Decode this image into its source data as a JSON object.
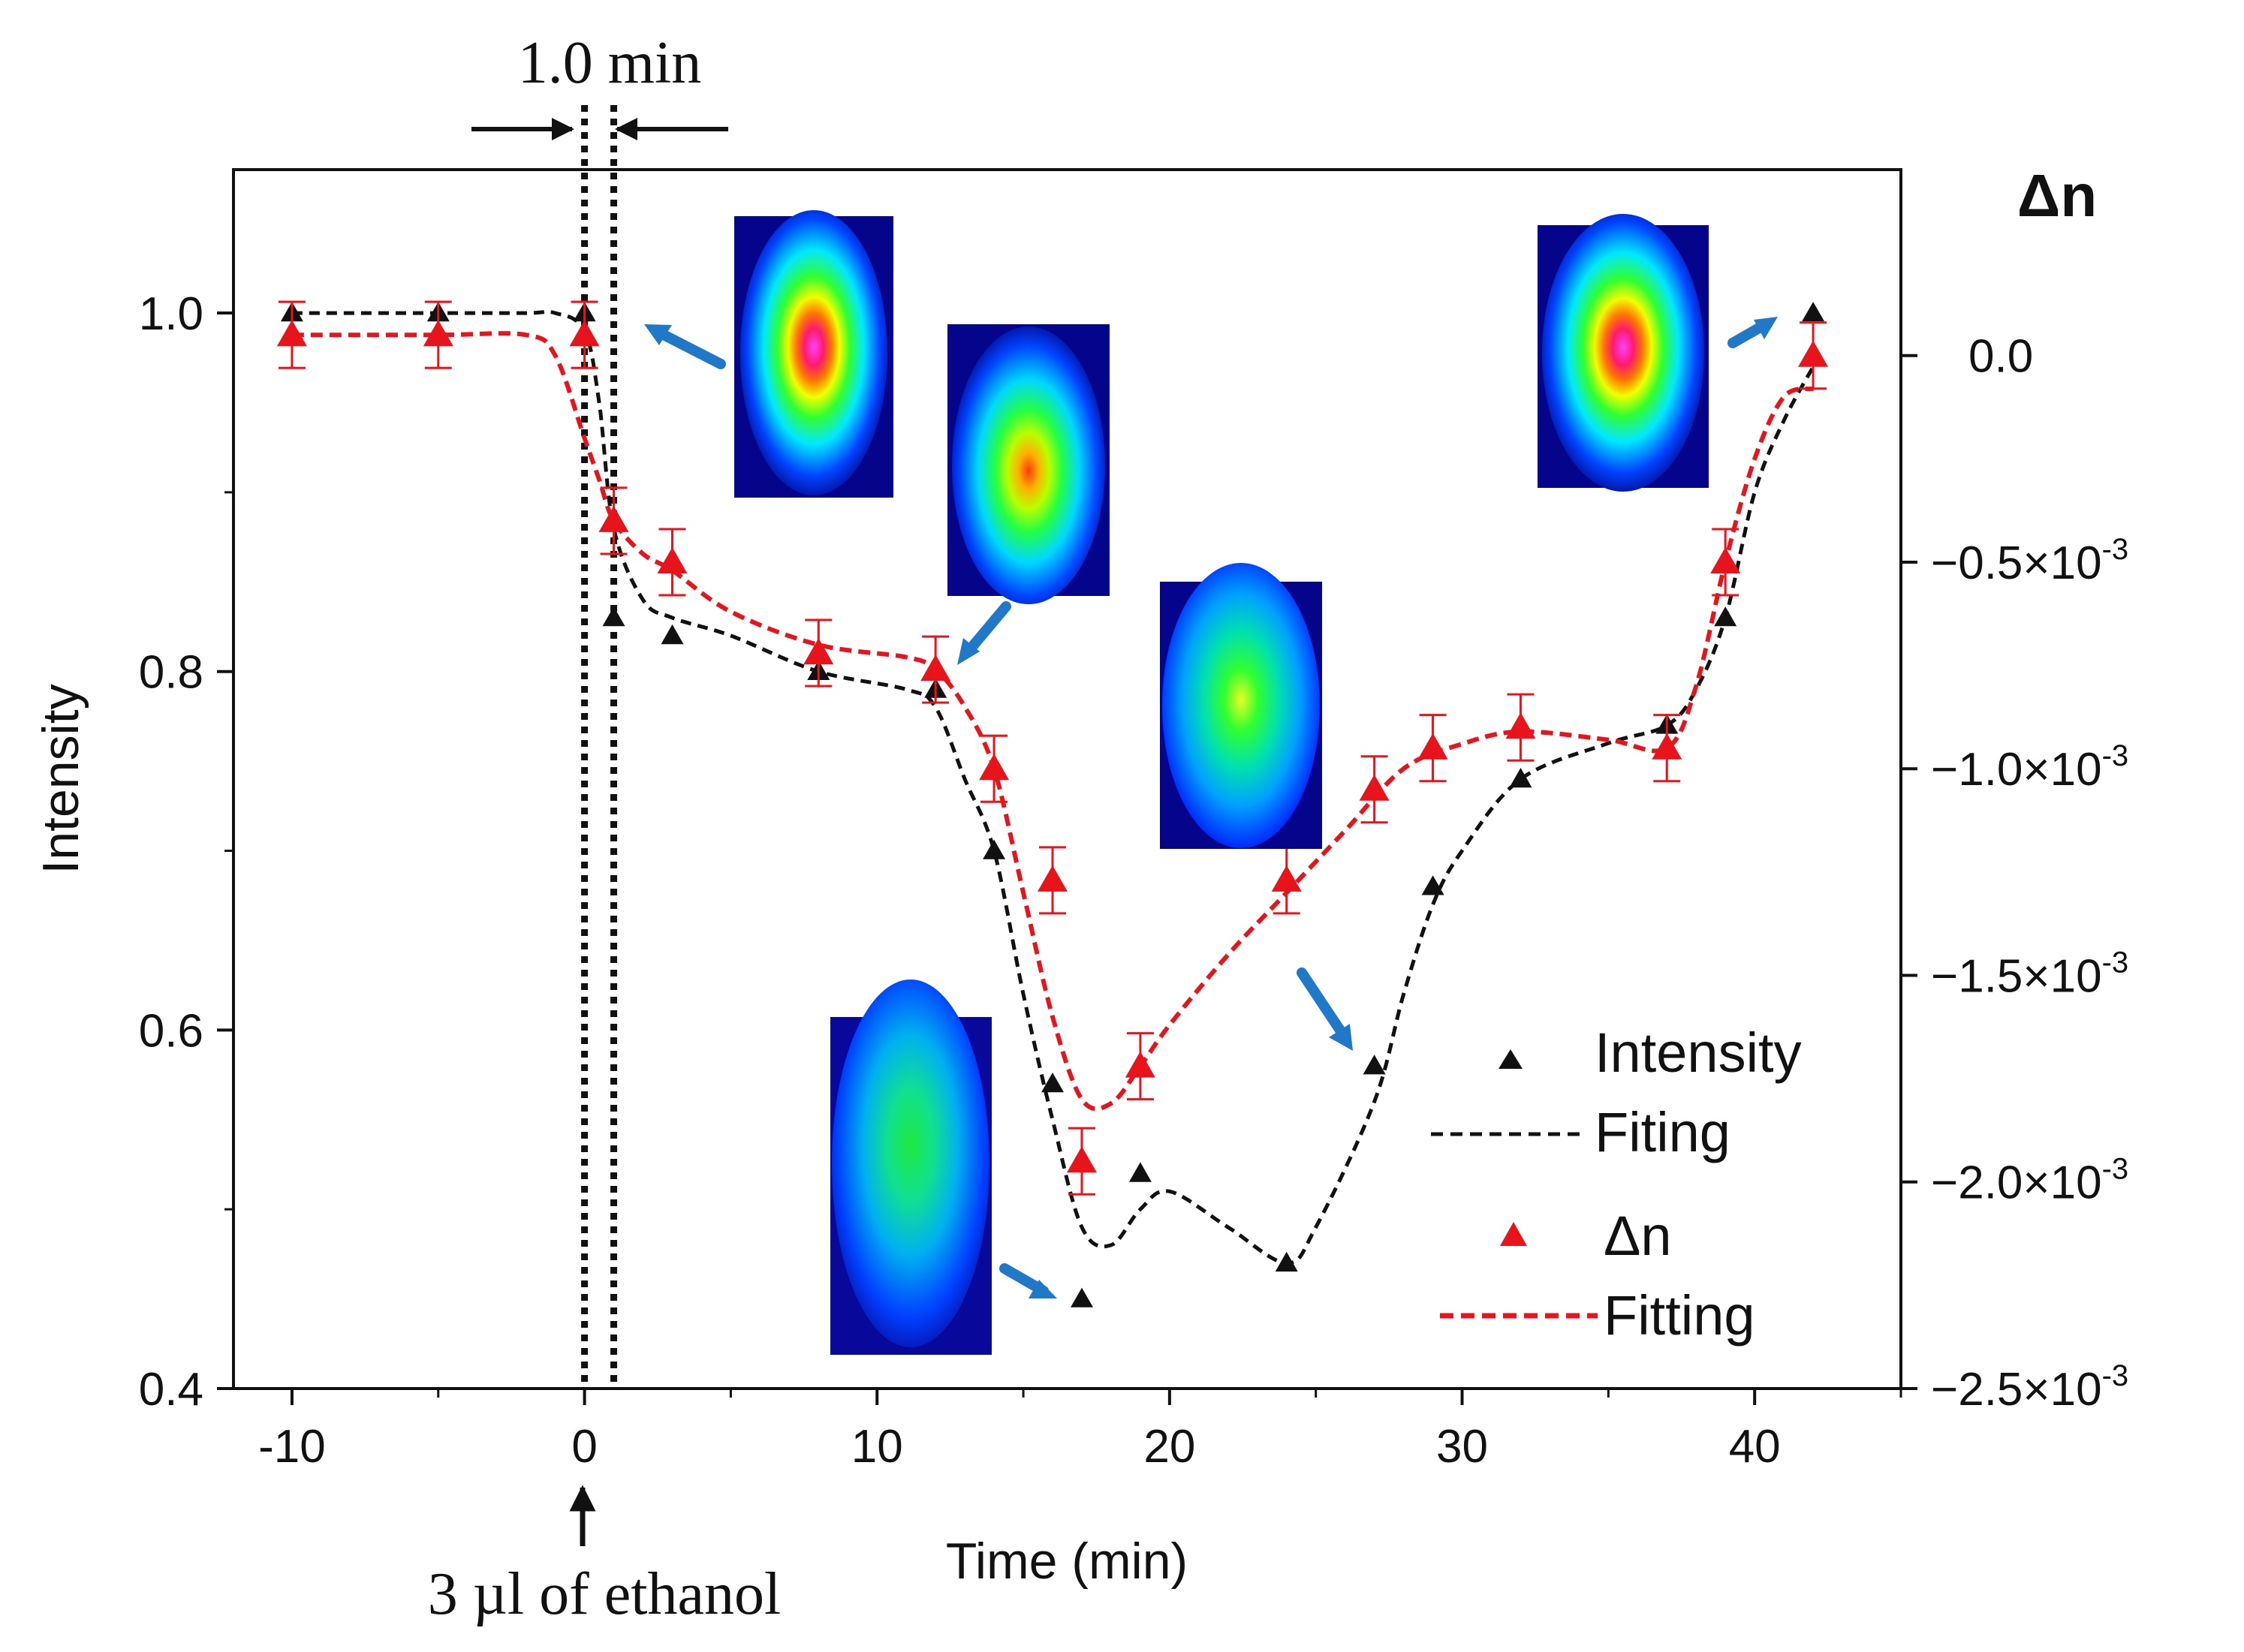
{
  "chart_data": {
    "type": "line",
    "title": "",
    "xlabel": "Time (min)",
    "ylabel": "Intensity",
    "y2label": "Δn",
    "xlim": [
      -12,
      45
    ],
    "ylim": [
      0.4,
      1.08
    ],
    "y2lim": [
      -0.0025,
      0.00045
    ],
    "x_ticks": [
      -10,
      0,
      10,
      20,
      30,
      40
    ],
    "x_tick_labels": [
      "-10",
      "0",
      "10",
      "20",
      "30",
      "40"
    ],
    "y_ticks": [
      0.4,
      0.6,
      0.8,
      1.0
    ],
    "y_tick_labels": [
      "0.4",
      "0.6",
      "0.8",
      "1.0"
    ],
    "y2_ticks": [
      0.0,
      -0.0005,
      -0.001,
      -0.0015,
      -0.002,
      -0.0025
    ],
    "y2_tick_labels": [
      {
        "base": "0.0",
        "exp": ""
      },
      {
        "base": "−0.5×10",
        "exp": "-3"
      },
      {
        "base": "−1.0×10",
        "exp": "-3"
      },
      {
        "base": "−1.5×10",
        "exp": "-3"
      },
      {
        "base": "−2.0×10",
        "exp": "-3"
      },
      {
        "base": "−2.5×10",
        "exp": "-3"
      }
    ],
    "series": [
      {
        "name": "Intensity",
        "axis": "left",
        "color": "#111111",
        "marker": "triangle",
        "x": [
          -10,
          -5,
          0,
          1,
          3,
          8,
          12,
          14,
          16,
          17,
          19,
          24,
          27,
          29,
          32,
          37,
          39,
          42
        ],
        "y": [
          1.0,
          1.0,
          1.0,
          0.83,
          0.82,
          0.8,
          0.79,
          0.7,
          0.57,
          0.45,
          0.52,
          0.47,
          0.58,
          0.68,
          0.74,
          0.77,
          0.83,
          1.0
        ]
      },
      {
        "name": "Fiting",
        "axis": "left",
        "color": "#111111",
        "style": "dashed",
        "x": [
          -10,
          -5,
          -2,
          -1,
          0,
          0.5,
          1,
          2,
          3,
          5,
          8,
          11,
          12,
          13,
          14,
          15,
          16,
          17,
          18,
          19,
          20,
          22,
          24,
          25,
          27,
          28,
          29,
          30,
          32,
          35,
          37,
          38,
          39,
          40,
          41,
          42
        ],
        "y": [
          1.0,
          1.0,
          1.0,
          1.0,
          0.99,
          0.95,
          0.88,
          0.84,
          0.83,
          0.82,
          0.8,
          0.79,
          0.78,
          0.74,
          0.7,
          0.62,
          0.55,
          0.49,
          0.48,
          0.5,
          0.51,
          0.49,
          0.47,
          0.49,
          0.56,
          0.62,
          0.67,
          0.7,
          0.74,
          0.76,
          0.77,
          0.79,
          0.83,
          0.9,
          0.94,
          0.97
        ]
      },
      {
        "name": "Δn",
        "axis": "right",
        "color": "#e8141c",
        "marker": "triangle",
        "x": [
          -10,
          -5,
          0,
          1,
          3,
          8,
          12,
          14,
          16,
          17,
          19,
          24,
          27,
          29,
          32,
          37,
          39,
          42
        ],
        "y": [
          5e-05,
          5e-05,
          5e-05,
          -0.0004,
          -0.0005,
          -0.00072,
          -0.00076,
          -0.001,
          -0.00127,
          -0.00195,
          -0.00172,
          -0.00127,
          -0.00105,
          -0.00095,
          -0.0009,
          -0.00095,
          -0.0005,
          0.0
        ],
        "err": [
          8e-05,
          8e-05,
          8e-05,
          8e-05,
          8e-05,
          8e-05,
          8e-05,
          8e-05,
          8e-05,
          8e-05,
          8e-05,
          8e-05,
          8e-05,
          8e-05,
          8e-05,
          8e-05,
          8e-05,
          8e-05
        ]
      },
      {
        "name": "Fitting",
        "axis": "right",
        "color": "#e8141c",
        "style": "dashed",
        "x": [
          -10,
          -5,
          -2,
          -1,
          0,
          0.5,
          1,
          2,
          3,
          5,
          8,
          11,
          12,
          13,
          14,
          15,
          16,
          17,
          18,
          19,
          20,
          22,
          24,
          26,
          28,
          30,
          32,
          35,
          37,
          38,
          39,
          40,
          41,
          42
        ],
        "y": [
          5e-05,
          5e-05,
          5e-05,
          0.0,
          -0.0002,
          -0.0003,
          -0.0004,
          -0.00048,
          -0.00052,
          -0.00062,
          -0.0007,
          -0.00073,
          -0.00076,
          -0.00085,
          -0.001,
          -0.0013,
          -0.0016,
          -0.0018,
          -0.00181,
          -0.00172,
          -0.00162,
          -0.00145,
          -0.0013,
          -0.00115,
          -0.001,
          -0.00094,
          -0.00091,
          -0.00093,
          -0.00095,
          -0.0008,
          -0.0005,
          -0.00025,
          -0.0001,
          -8e-05
        ]
      }
    ],
    "legend": {
      "position": "bottom-right",
      "entries": [
        "Intensity",
        "Fiting",
        "Δn",
        "Fitting"
      ]
    },
    "annotations": {
      "interval_label": "1.0 min",
      "injection_label": "3 µl of ethanol",
      "vlines_x": [
        0,
        1
      ]
    },
    "insets": [
      {
        "name": "beam-profile-t0",
        "at_x": 0,
        "type": "intense"
      },
      {
        "name": "beam-profile-t12",
        "at_x": 12,
        "type": "mid"
      },
      {
        "name": "beam-profile-t27",
        "at_x": 27,
        "type": "weak"
      },
      {
        "name": "beam-profile-t17",
        "at_x": 17,
        "type": "weakest"
      },
      {
        "name": "beam-profile-t42",
        "at_x": 42,
        "type": "intense"
      }
    ],
    "colors": {
      "intensity": "#111111",
      "delta_n": "#e8141c",
      "arrow": "#1f78c8"
    }
  }
}
